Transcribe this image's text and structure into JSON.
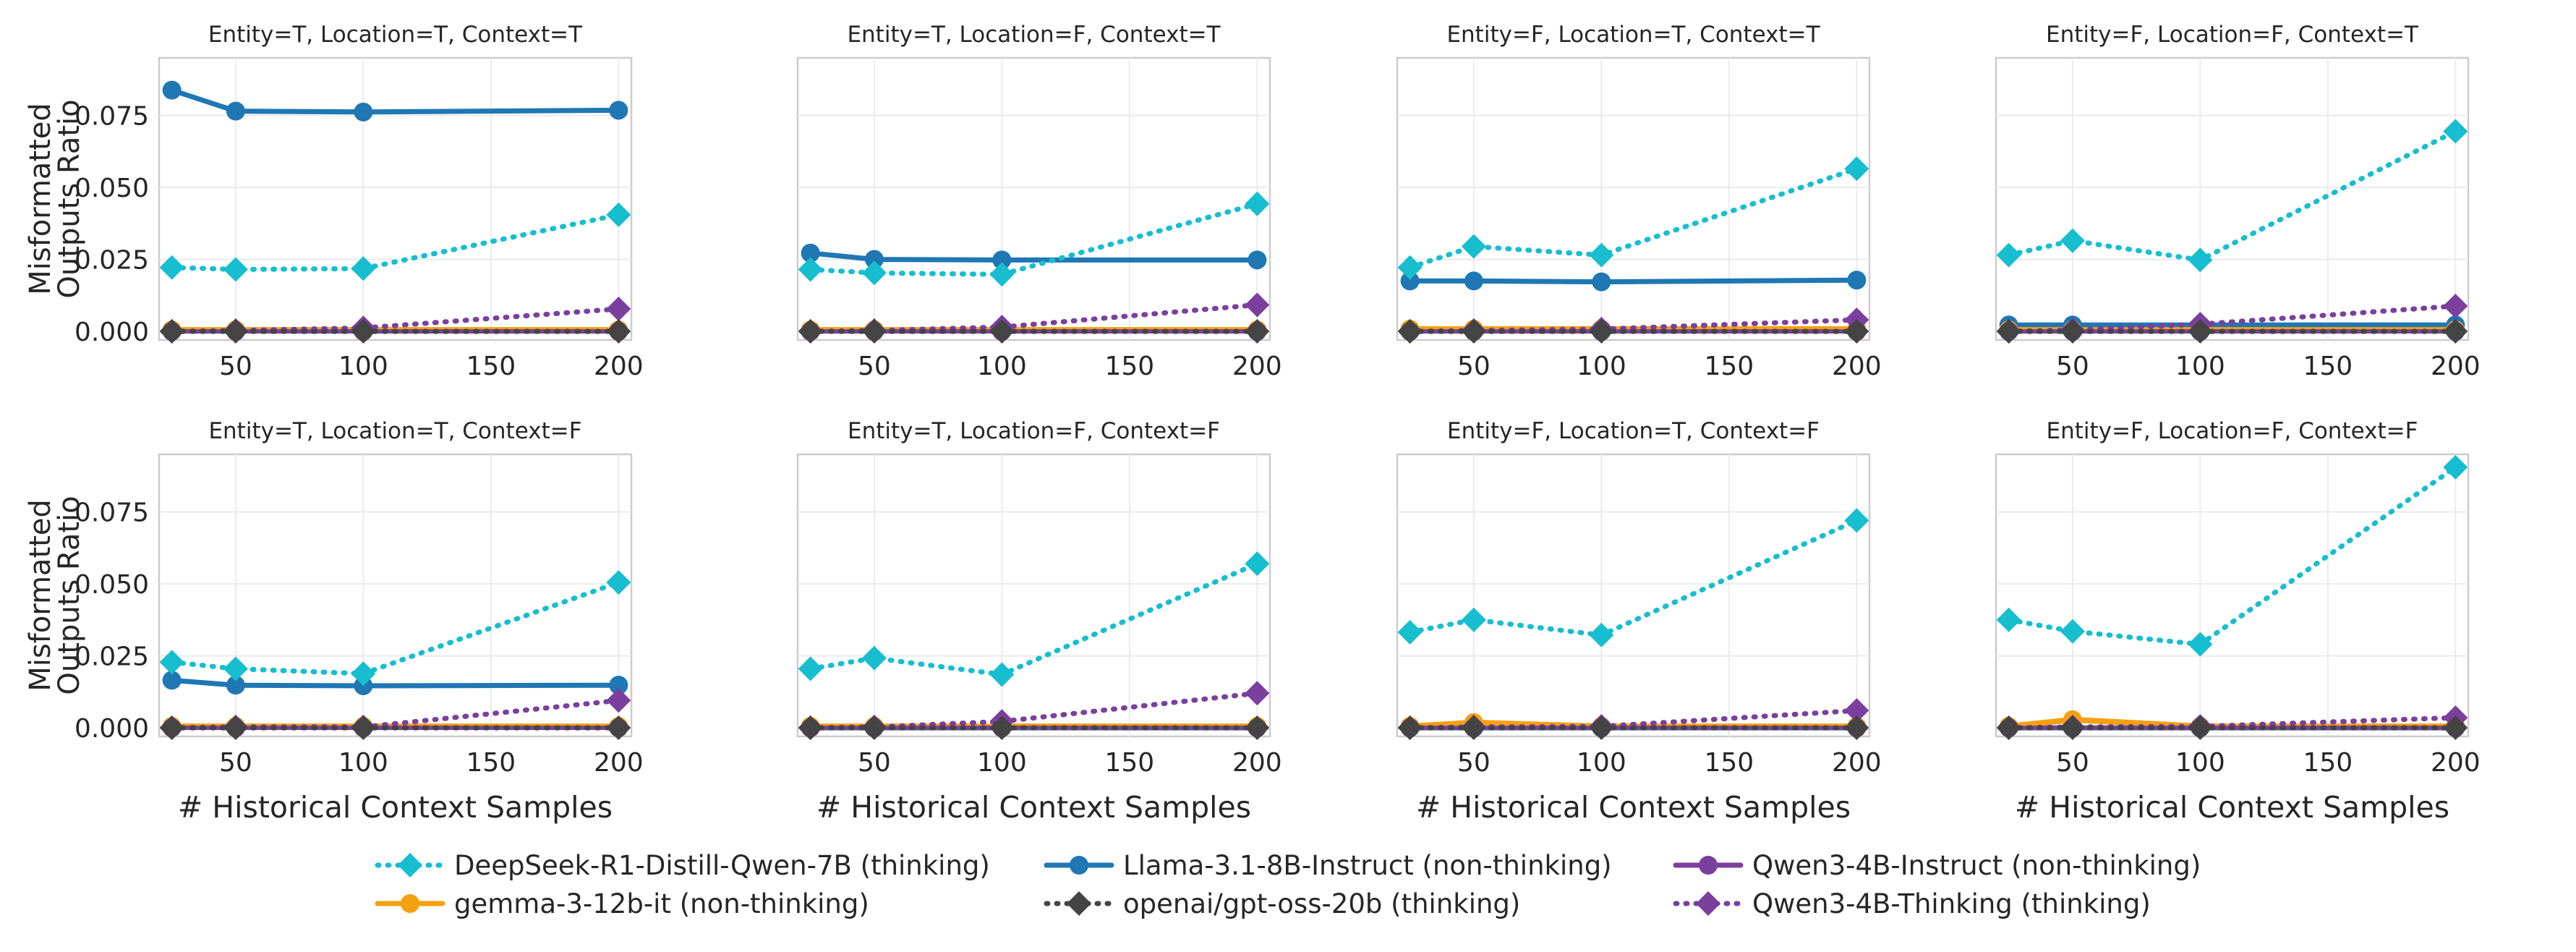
{
  "chart_data": {
    "type": "line",
    "x": [
      25,
      50,
      100,
      200
    ],
    "xticks": [
      50,
      100,
      150,
      200
    ],
    "xlim": [
      20,
      205
    ],
    "yticks": [
      0.0,
      0.025,
      0.05,
      0.075
    ],
    "ytick_labels": [
      "0.000",
      "0.025",
      "0.050",
      "0.075"
    ],
    "ylim": [
      -0.003,
      0.095
    ],
    "ylabel_line1": "Misformatted",
    "ylabel_line2": "Outputs Ratio",
    "xlabel": "# Historical Context Samples",
    "grid": true,
    "legend_position": "bottom-center",
    "series_style": [
      {
        "name": "DeepSeek-R1-Distill-Qwen-7B (thinking)",
        "color": "#17becf",
        "dash": "dotted",
        "marker": "diamond"
      },
      {
        "name": "gemma-3-12b-it (non-thinking)",
        "color": "#f5a00f",
        "dash": "solid",
        "marker": "circle"
      },
      {
        "name": "Llama-3.1-8B-Instruct (non-thinking)",
        "color": "#1f77b4",
        "dash": "solid",
        "marker": "circle"
      },
      {
        "name": "openai/gpt-oss-20b (thinking)",
        "color": "#444444",
        "dash": "dotted",
        "marker": "diamond"
      },
      {
        "name": "Qwen3-4B-Instruct (non-thinking)",
        "color": "#7b3f9e",
        "dash": "solid",
        "marker": "circle"
      },
      {
        "name": "Qwen3-4B-Thinking (thinking)",
        "color": "#7b3f9e",
        "dash": "dotted",
        "marker": "diamond"
      }
    ],
    "panels": [
      {
        "title": "Entity=T, Location=T, Context=T",
        "series": [
          [
            0.0222,
            0.0215,
            0.0218,
            0.0405
          ],
          [
            0.0005,
            0.0005,
            0.0005,
            0.0005
          ],
          [
            0.0838,
            0.0765,
            0.0762,
            0.0768
          ],
          [
            0.0,
            0.0,
            0.0,
            0.0
          ],
          [
            0.0,
            0.0,
            0.0,
            0.0
          ],
          [
            0.0,
            0.0003,
            0.0012,
            0.0078
          ]
        ]
      },
      {
        "title": "Entity=T, Location=F, Context=T",
        "series": [
          [
            0.0215,
            0.0203,
            0.0198,
            0.0443
          ],
          [
            0.0005,
            0.0005,
            0.0005,
            0.0005
          ],
          [
            0.0272,
            0.025,
            0.0248,
            0.0248
          ],
          [
            0.0,
            0.0,
            0.0,
            0.0
          ],
          [
            0.0,
            0.0,
            0.0,
            0.0
          ],
          [
            0.0,
            0.0003,
            0.0015,
            0.0092
          ]
        ]
      },
      {
        "title": "Entity=F, Location=T, Context=T",
        "series": [
          [
            0.0222,
            0.0295,
            0.0265,
            0.0565
          ],
          [
            0.0008,
            0.0008,
            0.0008,
            0.0008
          ],
          [
            0.0175,
            0.0175,
            0.0172,
            0.0178
          ],
          [
            0.0,
            0.0,
            0.0,
            0.0
          ],
          [
            0.0,
            0.0,
            0.0,
            0.0
          ],
          [
            0.0,
            0.0003,
            0.0008,
            0.004
          ]
        ]
      },
      {
        "title": "Entity=F, Location=F, Context=T",
        "series": [
          [
            0.0265,
            0.0315,
            0.0248,
            0.0695
          ],
          [
            0.0005,
            0.0005,
            0.0005,
            0.0005
          ],
          [
            0.0022,
            0.0022,
            0.0022,
            0.0022
          ],
          [
            0.0,
            0.0,
            0.0,
            0.0
          ],
          [
            0.0,
            0.0,
            0.0,
            0.0
          ],
          [
            0.0,
            0.0005,
            0.0025,
            0.0088
          ]
        ]
      },
      {
        "title": "Entity=T, Location=T, Context=F",
        "series": [
          [
            0.0228,
            0.0205,
            0.0188,
            0.0505
          ],
          [
            0.0005,
            0.0005,
            0.0005,
            0.0005
          ],
          [
            0.0165,
            0.0148,
            0.0146,
            0.0148
          ],
          [
            0.0,
            0.0,
            0.0,
            0.0
          ],
          [
            0.0,
            0.0,
            0.0,
            0.0
          ],
          [
            0.0,
            0.0003,
            0.0003,
            0.0095
          ]
        ]
      },
      {
        "title": "Entity=T, Location=F, Context=F",
        "series": [
          [
            0.0205,
            0.0242,
            0.0185,
            0.057
          ],
          [
            0.0005,
            0.0005,
            0.0005,
            0.0005
          ],
          [
            0.0,
            0.0,
            0.0,
            0.0
          ],
          [
            0.0,
            0.0,
            0.0,
            0.0
          ],
          [
            0.0,
            0.0,
            0.0,
            0.0
          ],
          [
            0.0,
            0.0003,
            0.0022,
            0.012
          ]
        ]
      },
      {
        "title": "Entity=F, Location=T, Context=F",
        "series": [
          [
            0.0332,
            0.0375,
            0.0322,
            0.072
          ],
          [
            0.0005,
            0.0018,
            0.0005,
            0.0005
          ],
          [
            0.0,
            0.0,
            0.0,
            0.0
          ],
          [
            0.0,
            0.0,
            0.0,
            0.0
          ],
          [
            0.0,
            0.0,
            0.0,
            0.0
          ],
          [
            0.0,
            0.0003,
            0.0005,
            0.006
          ]
        ]
      },
      {
        "title": "Entity=F, Location=F, Context=F",
        "series": [
          [
            0.0375,
            0.0335,
            0.029,
            0.0905
          ],
          [
            0.0005,
            0.0028,
            0.0005,
            0.0005
          ],
          [
            0.0,
            0.0,
            0.0,
            0.0
          ],
          [
            0.0,
            0.0,
            0.0,
            0.0
          ],
          [
            0.0,
            0.0,
            0.0,
            0.0
          ],
          [
            0.0,
            0.0003,
            0.0005,
            0.0035
          ]
        ]
      }
    ]
  }
}
